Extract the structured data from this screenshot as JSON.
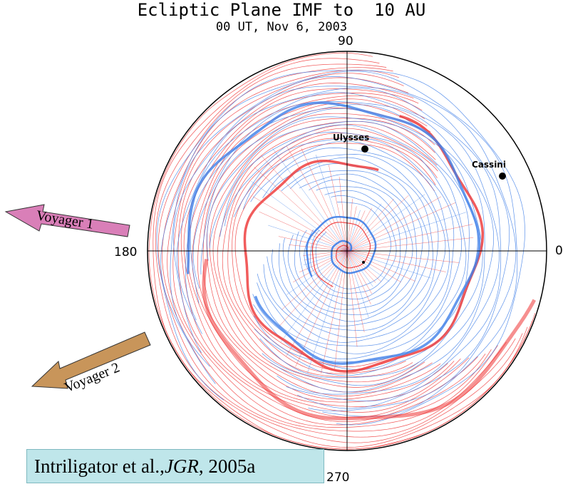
{
  "figure": {
    "title": "Ecliptic Plane IMF to  10 AU",
    "subtitle": "00 UT, Nov 6, 2003",
    "angle_labels": {
      "a90": "90",
      "a180": "180",
      "a0": "0",
      "a270": "270"
    },
    "spacecraft": [
      {
        "name": "Ulysses"
      },
      {
        "name": "Cassini"
      }
    ],
    "arrows": [
      {
        "label": "Voyager 1",
        "color": "#d97fb8"
      },
      {
        "label": "Voyager 2",
        "color": "#c8955a"
      }
    ],
    "citation": {
      "prefix": "Intriligator et al., ",
      "journal": "JGR",
      "suffix": ", 2005a"
    },
    "colors": {
      "red": "#ee3333",
      "blue": "#3f7fe8",
      "cite_bg": "#bfe6ea"
    }
  }
}
